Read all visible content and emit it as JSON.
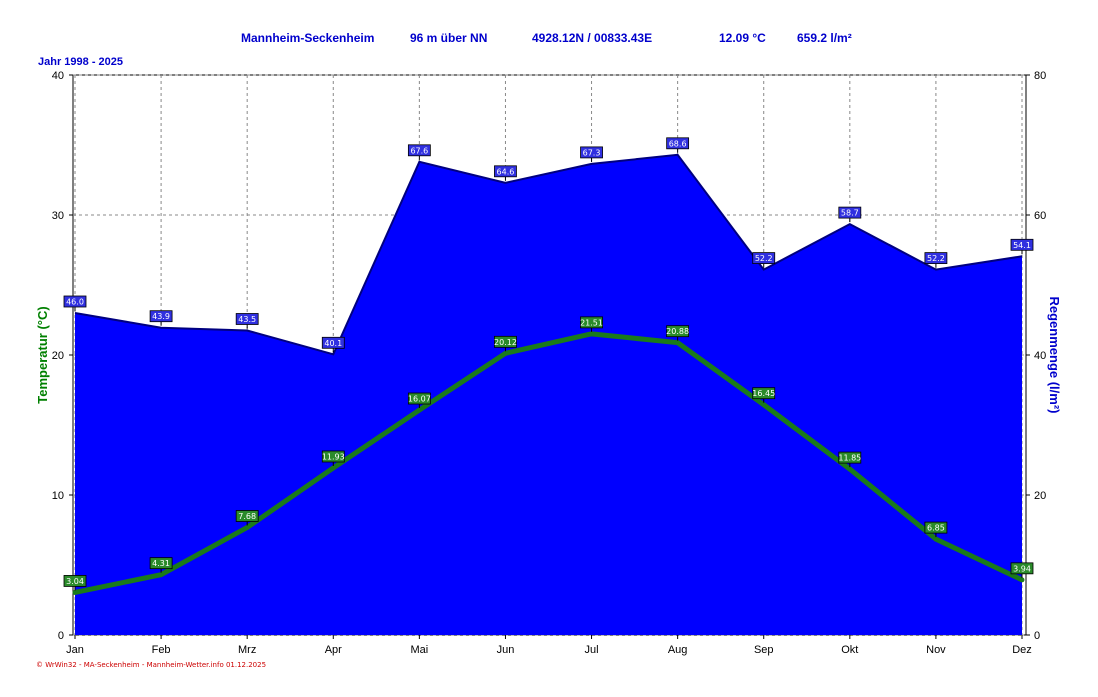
{
  "header": {
    "station": "Mannheim-Seckenheim",
    "altitude": "96 m über NN",
    "coords": "4928.12N / 00833.43E",
    "mean_temp": "12.09 °C",
    "precip_sum": "659.2 l/m²",
    "years": "Jahr  1998 - 2025"
  },
  "footer": {
    "text": "© WrWin32 - MA-Seckenheim - Mannheim-Wetter.info  01.12.2025"
  },
  "colors": {
    "rain_fill": "#0000ff",
    "rain_outline": "#000080",
    "temp_line": "#1a7a1a",
    "temp_axis_label": "#008000",
    "rain_axis_label": "#0000cc",
    "grid": "#888888",
    "plot_bg": "#ffffff",
    "temp_label_bg": "#2a8a2a",
    "rain_label_bg": "#3030e0"
  },
  "chart_data": {
    "type": "area+line",
    "categories": [
      "Jan",
      "Feb",
      "Mrz",
      "Apr",
      "Mai",
      "Jun",
      "Jul",
      "Aug",
      "Sep",
      "Okt",
      "Nov",
      "Dez"
    ],
    "series": [
      {
        "name": "Regenmenge",
        "axis": "right",
        "kind": "area",
        "values": [
          46.0,
          43.9,
          43.5,
          40.1,
          67.6,
          64.6,
          67.3,
          68.6,
          52.2,
          58.7,
          52.2,
          54.1
        ],
        "labels": [
          "46.0",
          "43.9",
          "43.5",
          "40.1",
          "67.6",
          "64.6",
          "67.3",
          "68.6",
          "52.2",
          "58.7",
          "52.2",
          "54.1"
        ]
      },
      {
        "name": "Temperatur",
        "axis": "left",
        "kind": "line",
        "values": [
          3.04,
          4.31,
          7.68,
          11.93,
          16.07,
          20.12,
          21.51,
          20.88,
          16.45,
          11.85,
          6.85,
          3.94
        ],
        "labels": [
          "3.04",
          "4.31",
          "7.68",
          "11.93",
          "16.07",
          "20.12",
          "21.51",
          "20.88",
          "16.45",
          "11.85",
          "6.85",
          "3.94"
        ]
      }
    ],
    "y_left": {
      "label": "Temperatur  (°C)",
      "ylim": [
        0,
        40
      ],
      "ticks": [
        "0",
        "10",
        "20",
        "30",
        "40"
      ]
    },
    "y_right": {
      "label": "Regenmenge  (l/m²)",
      "ylim": [
        0,
        80
      ],
      "ticks": [
        "0",
        "20",
        "40",
        "60",
        "80"
      ]
    },
    "grid": true
  }
}
